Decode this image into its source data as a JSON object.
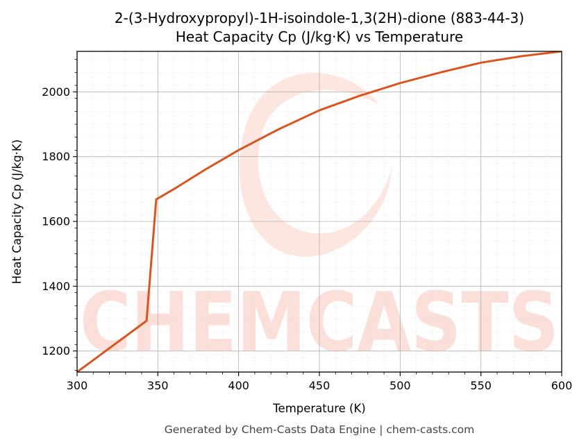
{
  "chart_data": {
    "type": "line",
    "title": "2-(3-Hydroxypropyl)-1H-isoindole-1,3(2H)-dione (883-44-3)",
    "subtitle": "Heat Capacity Cp (J/kg·K) vs Temperature",
    "xlabel": "Temperature (K)",
    "ylabel": "Heat Capacity Cp (J/kg·K)",
    "xlim": [
      300,
      600
    ],
    "ylim": [
      1135,
      2125
    ],
    "xticks": [
      300,
      350,
      400,
      450,
      500,
      550,
      600
    ],
    "yticks": [
      1200,
      1400,
      1600,
      1800,
      2000
    ],
    "grid": true,
    "series": [
      {
        "color": "#d9541e",
        "x": [
          300,
          343,
          349,
          360,
          380,
          400,
          425,
          450,
          475,
          500,
          525,
          550,
          575,
          600
        ],
        "y": [
          1135,
          1293,
          1668,
          1700,
          1762,
          1820,
          1885,
          1943,
          1988,
          2027,
          2060,
          2090,
          2110,
          2125
        ]
      }
    ]
  },
  "watermark": {
    "text": "CHEMCASTS",
    "color": "#fbd5cc"
  },
  "footer": "Generated by Chem-Casts Data Engine | chem-casts.com"
}
